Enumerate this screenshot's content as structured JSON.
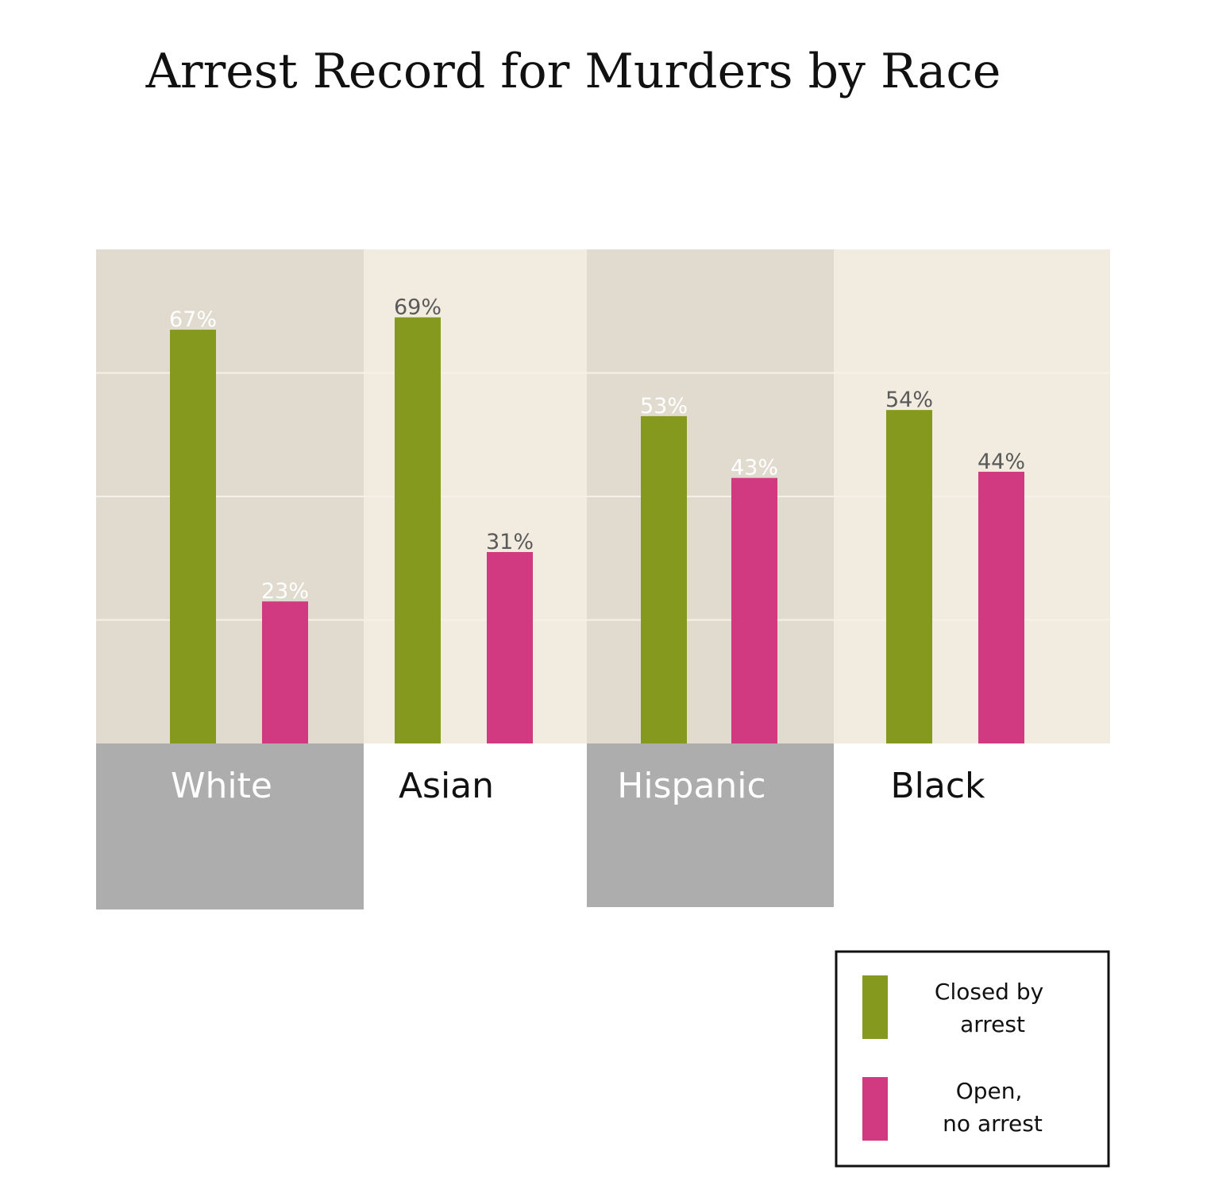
{
  "chart_data": {
    "type": "bar",
    "title": "Arrest Record for Murders by Race",
    "categories": [
      "White",
      "Asian",
      "Hispanic",
      "Black"
    ],
    "series": [
      {
        "name": "Closed by arrest",
        "values": [
          67,
          69,
          53,
          54
        ],
        "labels": [
          "67%",
          "69%",
          "53%",
          "54%"
        ]
      },
      {
        "name": "Open, no arrest",
        "values": [
          23,
          31,
          43,
          44
        ],
        "labels": [
          "23%",
          "31%",
          "43%",
          "44%"
        ]
      }
    ],
    "ylim": [
      0,
      80
    ],
    "grid": true,
    "legend": {
      "position": "bottom-right",
      "items": [
        {
          "lines": [
            "Closed by",
            "arrest"
          ]
        },
        {
          "lines": [
            "Open,",
            "no arrest"
          ]
        }
      ]
    },
    "colors": {
      "closed": "#86991f",
      "open": "#d13a80",
      "panel_dark": "#e1dbcf",
      "panel_light": "#f2ece0",
      "label_box": "#aeadad",
      "gridline": "#f6f1e8"
    }
  }
}
